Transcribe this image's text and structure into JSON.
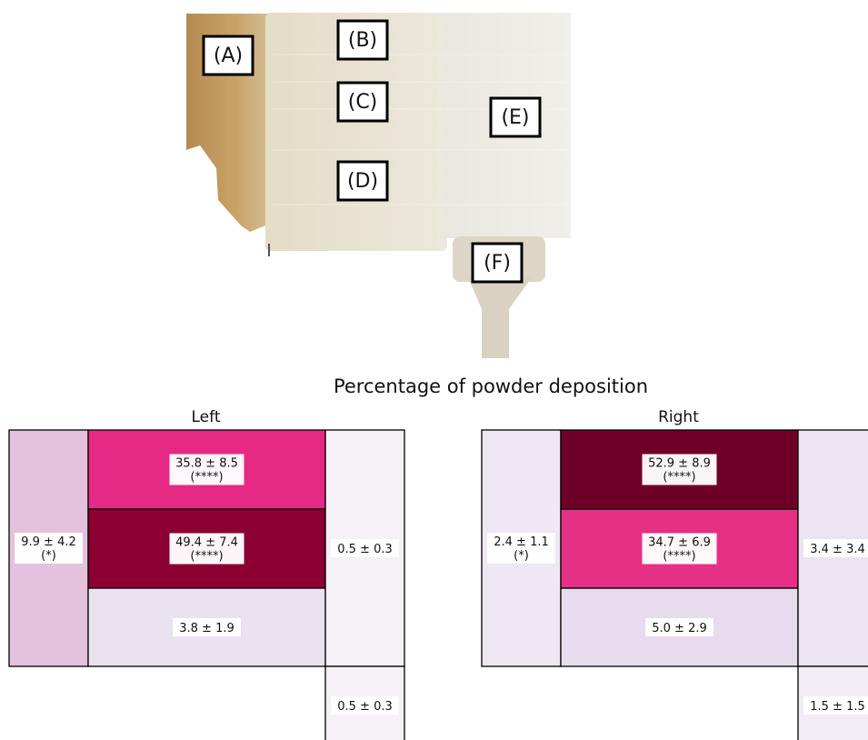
{
  "photo": {
    "labels": [
      "(A)",
      "(B)",
      "(C)",
      "(D)",
      "(E)",
      "(F)"
    ]
  },
  "chart_data": {
    "type": "heatmap",
    "title": "Percentage of powder deposition",
    "panels": [
      {
        "name": "Left",
        "cells": [
          {
            "region": "A",
            "mean": 9.9,
            "sd": 4.2,
            "significance": "(*)",
            "label": "9.9 ± 4.2"
          },
          {
            "region": "B",
            "mean": 35.8,
            "sd": 8.5,
            "significance": "(****)",
            "label": "35.8 ± 8.5"
          },
          {
            "region": "C",
            "mean": 49.4,
            "sd": 7.4,
            "significance": "(****)",
            "label": "49.4 ± 7.4"
          },
          {
            "region": "D",
            "mean": 3.8,
            "sd": 1.9,
            "significance": "",
            "label": "3.8 ± 1.9"
          },
          {
            "region": "E",
            "mean": 0.5,
            "sd": 0.3,
            "significance": "",
            "label": "0.5 ± 0.3"
          },
          {
            "region": "F",
            "mean": 0.5,
            "sd": 0.3,
            "significance": "",
            "label": "0.5 ± 0.3"
          }
        ]
      },
      {
        "name": "Right",
        "cells": [
          {
            "region": "A",
            "mean": 2.4,
            "sd": 1.1,
            "significance": "(*)",
            "label": "2.4 ± 1.1"
          },
          {
            "region": "B",
            "mean": 52.9,
            "sd": 8.9,
            "significance": "(****)",
            "label": "52.9 ± 8.9"
          },
          {
            "region": "C",
            "mean": 34.7,
            "sd": 6.9,
            "significance": "(****)",
            "label": "34.7 ± 6.9"
          },
          {
            "region": "D",
            "mean": 5.0,
            "sd": 2.9,
            "significance": "",
            "label": "5.0 ± 2.9"
          },
          {
            "region": "E",
            "mean": 3.4,
            "sd": 3.4,
            "significance": "",
            "label": "3.4 ± 3.4"
          },
          {
            "region": "F",
            "mean": 1.5,
            "sd": 1.5,
            "significance": "",
            "label": "1.5 ± 1.5"
          }
        ]
      }
    ],
    "colormap": "pink-to-dark-crimson"
  }
}
